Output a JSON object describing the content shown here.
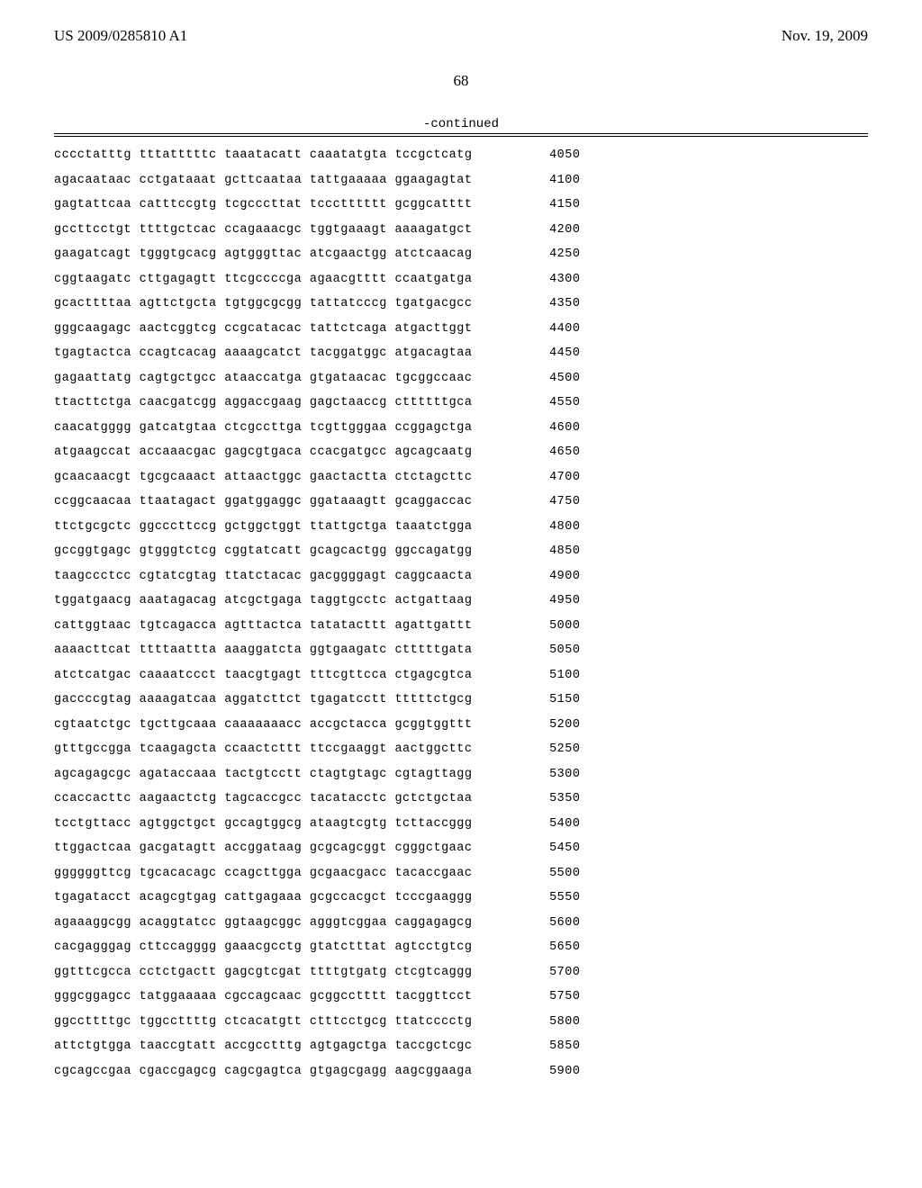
{
  "header": {
    "left": "US 2009/0285810 A1",
    "right": "Nov. 19, 2009"
  },
  "page_number": "68",
  "continued_label": "-continued",
  "sequence": {
    "font_family": "Courier New",
    "font_size_pt": 10,
    "group_size": 10,
    "groups_per_row": 5,
    "rows": [
      {
        "groups": [
          "cccctatttg",
          "tttatttttc",
          "taaatacatt",
          "caaatatgta",
          "tccgctcatg"
        ],
        "pos": "4050"
      },
      {
        "groups": [
          "agacaataac",
          "cctgataaat",
          "gcttcaataa",
          "tattgaaaaa",
          "ggaagagtat"
        ],
        "pos": "4100"
      },
      {
        "groups": [
          "gagtattcaa",
          "catttccgtg",
          "tcgcccttat",
          "tccctttttt",
          "gcggcatttt"
        ],
        "pos": "4150"
      },
      {
        "groups": [
          "gccttcctgt",
          "ttttgctcac",
          "ccagaaacgc",
          "tggtgaaagt",
          "aaaagatgct"
        ],
        "pos": "4200"
      },
      {
        "groups": [
          "gaagatcagt",
          "tgggtgcacg",
          "agtgggttac",
          "atcgaactgg",
          "atctcaacag"
        ],
        "pos": "4250"
      },
      {
        "groups": [
          "cggtaagatc",
          "cttgagagtt",
          "ttcgccccga",
          "agaacgtttt",
          "ccaatgatga"
        ],
        "pos": "4300"
      },
      {
        "groups": [
          "gcacttttaa",
          "agttctgcta",
          "tgtggcgcgg",
          "tattatcccg",
          "tgatgacgcc"
        ],
        "pos": "4350"
      },
      {
        "groups": [
          "gggcaagagc",
          "aactcggtcg",
          "ccgcatacac",
          "tattctcaga",
          "atgacttggt"
        ],
        "pos": "4400"
      },
      {
        "groups": [
          "tgagtactca",
          "ccagtcacag",
          "aaaagcatct",
          "tacggatggc",
          "atgacagtaa"
        ],
        "pos": "4450"
      },
      {
        "groups": [
          "gagaattatg",
          "cagtgctgcc",
          "ataaccatga",
          "gtgataacac",
          "tgcggccaac"
        ],
        "pos": "4500"
      },
      {
        "groups": [
          "ttacttctga",
          "caacgatcgg",
          "aggaccgaag",
          "gagctaaccg",
          "cttttttgca"
        ],
        "pos": "4550"
      },
      {
        "groups": [
          "caacatgggg",
          "gatcatgtaa",
          "ctcgccttga",
          "tcgttgggaa",
          "ccggagctga"
        ],
        "pos": "4600"
      },
      {
        "groups": [
          "atgaagccat",
          "accaaacgac",
          "gagcgtgaca",
          "ccacgatgcc",
          "agcagcaatg"
        ],
        "pos": "4650"
      },
      {
        "groups": [
          "gcaacaacgt",
          "tgcgcaaact",
          "attaactggc",
          "gaactactta",
          "ctctagcttc"
        ],
        "pos": "4700"
      },
      {
        "groups": [
          "ccggcaacaa",
          "ttaatagact",
          "ggatggaggc",
          "ggataaagtt",
          "gcaggaccac"
        ],
        "pos": "4750"
      },
      {
        "groups": [
          "ttctgcgctc",
          "ggcccttccg",
          "gctggctggt",
          "ttattgctga",
          "taaatctgga"
        ],
        "pos": "4800"
      },
      {
        "groups": [
          "gccggtgagc",
          "gtgggtctcg",
          "cggtatcatt",
          "gcagcactgg",
          "ggccagatgg"
        ],
        "pos": "4850"
      },
      {
        "groups": [
          "taagccctcc",
          "cgtatcgtag",
          "ttatctacac",
          "gacggggagt",
          "caggcaacta"
        ],
        "pos": "4900"
      },
      {
        "groups": [
          "tggatgaacg",
          "aaatagacag",
          "atcgctgaga",
          "taggtgcctc",
          "actgattaag"
        ],
        "pos": "4950"
      },
      {
        "groups": [
          "cattggtaac",
          "tgtcagacca",
          "agtttactca",
          "tatatacttt",
          "agattgattt"
        ],
        "pos": "5000"
      },
      {
        "groups": [
          "aaaacttcat",
          "ttttaattta",
          "aaaggatcta",
          "ggtgaagatc",
          "ctttttgata"
        ],
        "pos": "5050"
      },
      {
        "groups": [
          "atctcatgac",
          "caaaatccct",
          "taacgtgagt",
          "tttcgttcca",
          "ctgagcgtca"
        ],
        "pos": "5100"
      },
      {
        "groups": [
          "gaccccgtag",
          "aaaagatcaa",
          "aggatcttct",
          "tgagatcctt",
          "tttttctgcg"
        ],
        "pos": "5150"
      },
      {
        "groups": [
          "cgtaatctgc",
          "tgcttgcaaa",
          "caaaaaaacc",
          "accgctacca",
          "gcggtggttt"
        ],
        "pos": "5200"
      },
      {
        "groups": [
          "gtttgccgga",
          "tcaagagcta",
          "ccaactcttt",
          "ttccgaaggt",
          "aactggcttc"
        ],
        "pos": "5250"
      },
      {
        "groups": [
          "agcagagcgc",
          "agataccaaa",
          "tactgtcctt",
          "ctagtgtagc",
          "cgtagttagg"
        ],
        "pos": "5300"
      },
      {
        "groups": [
          "ccaccacttc",
          "aagaactctg",
          "tagcaccgcc",
          "tacatacctc",
          "gctctgctaa"
        ],
        "pos": "5350"
      },
      {
        "groups": [
          "tcctgttacc",
          "agtggctgct",
          "gccagtggcg",
          "ataagtcgtg",
          "tcttaccggg"
        ],
        "pos": "5400"
      },
      {
        "groups": [
          "ttggactcaa",
          "gacgatagtt",
          "accggataag",
          "gcgcagcggt",
          "cgggctgaac"
        ],
        "pos": "5450"
      },
      {
        "groups": [
          "ggggggttcg",
          "tgcacacagc",
          "ccagcttgga",
          "gcgaacgacc",
          "tacaccgaac"
        ],
        "pos": "5500"
      },
      {
        "groups": [
          "tgagatacct",
          "acagcgtgag",
          "cattgagaaa",
          "gcgccacgct",
          "tcccgaaggg"
        ],
        "pos": "5550"
      },
      {
        "groups": [
          "agaaaggcgg",
          "acaggtatcc",
          "ggtaagcggc",
          "agggtcggaa",
          "caggagagcg"
        ],
        "pos": "5600"
      },
      {
        "groups": [
          "cacgagggag",
          "cttccagggg",
          "gaaacgcctg",
          "gtatctttat",
          "agtcctgtcg"
        ],
        "pos": "5650"
      },
      {
        "groups": [
          "ggtttcgcca",
          "cctctgactt",
          "gagcgtcgat",
          "ttttgtgatg",
          "ctcgtcaggg"
        ],
        "pos": "5700"
      },
      {
        "groups": [
          "gggcggagcc",
          "tatggaaaaa",
          "cgccagcaac",
          "gcggcctttt",
          "tacggttcct"
        ],
        "pos": "5750"
      },
      {
        "groups": [
          "ggccttttgc",
          "tggccttttg",
          "ctcacatgtt",
          "ctttcctgcg",
          "ttatcccctg"
        ],
        "pos": "5800"
      },
      {
        "groups": [
          "attctgtgga",
          "taaccgtatt",
          "accgcctttg",
          "agtgagctga",
          "taccgctcgc"
        ],
        "pos": "5850"
      },
      {
        "groups": [
          "cgcagccgaa",
          "cgaccgagcg",
          "cagcgagtca",
          "gtgagcgagg",
          "aagcggaaga"
        ],
        "pos": "5900"
      }
    ]
  }
}
